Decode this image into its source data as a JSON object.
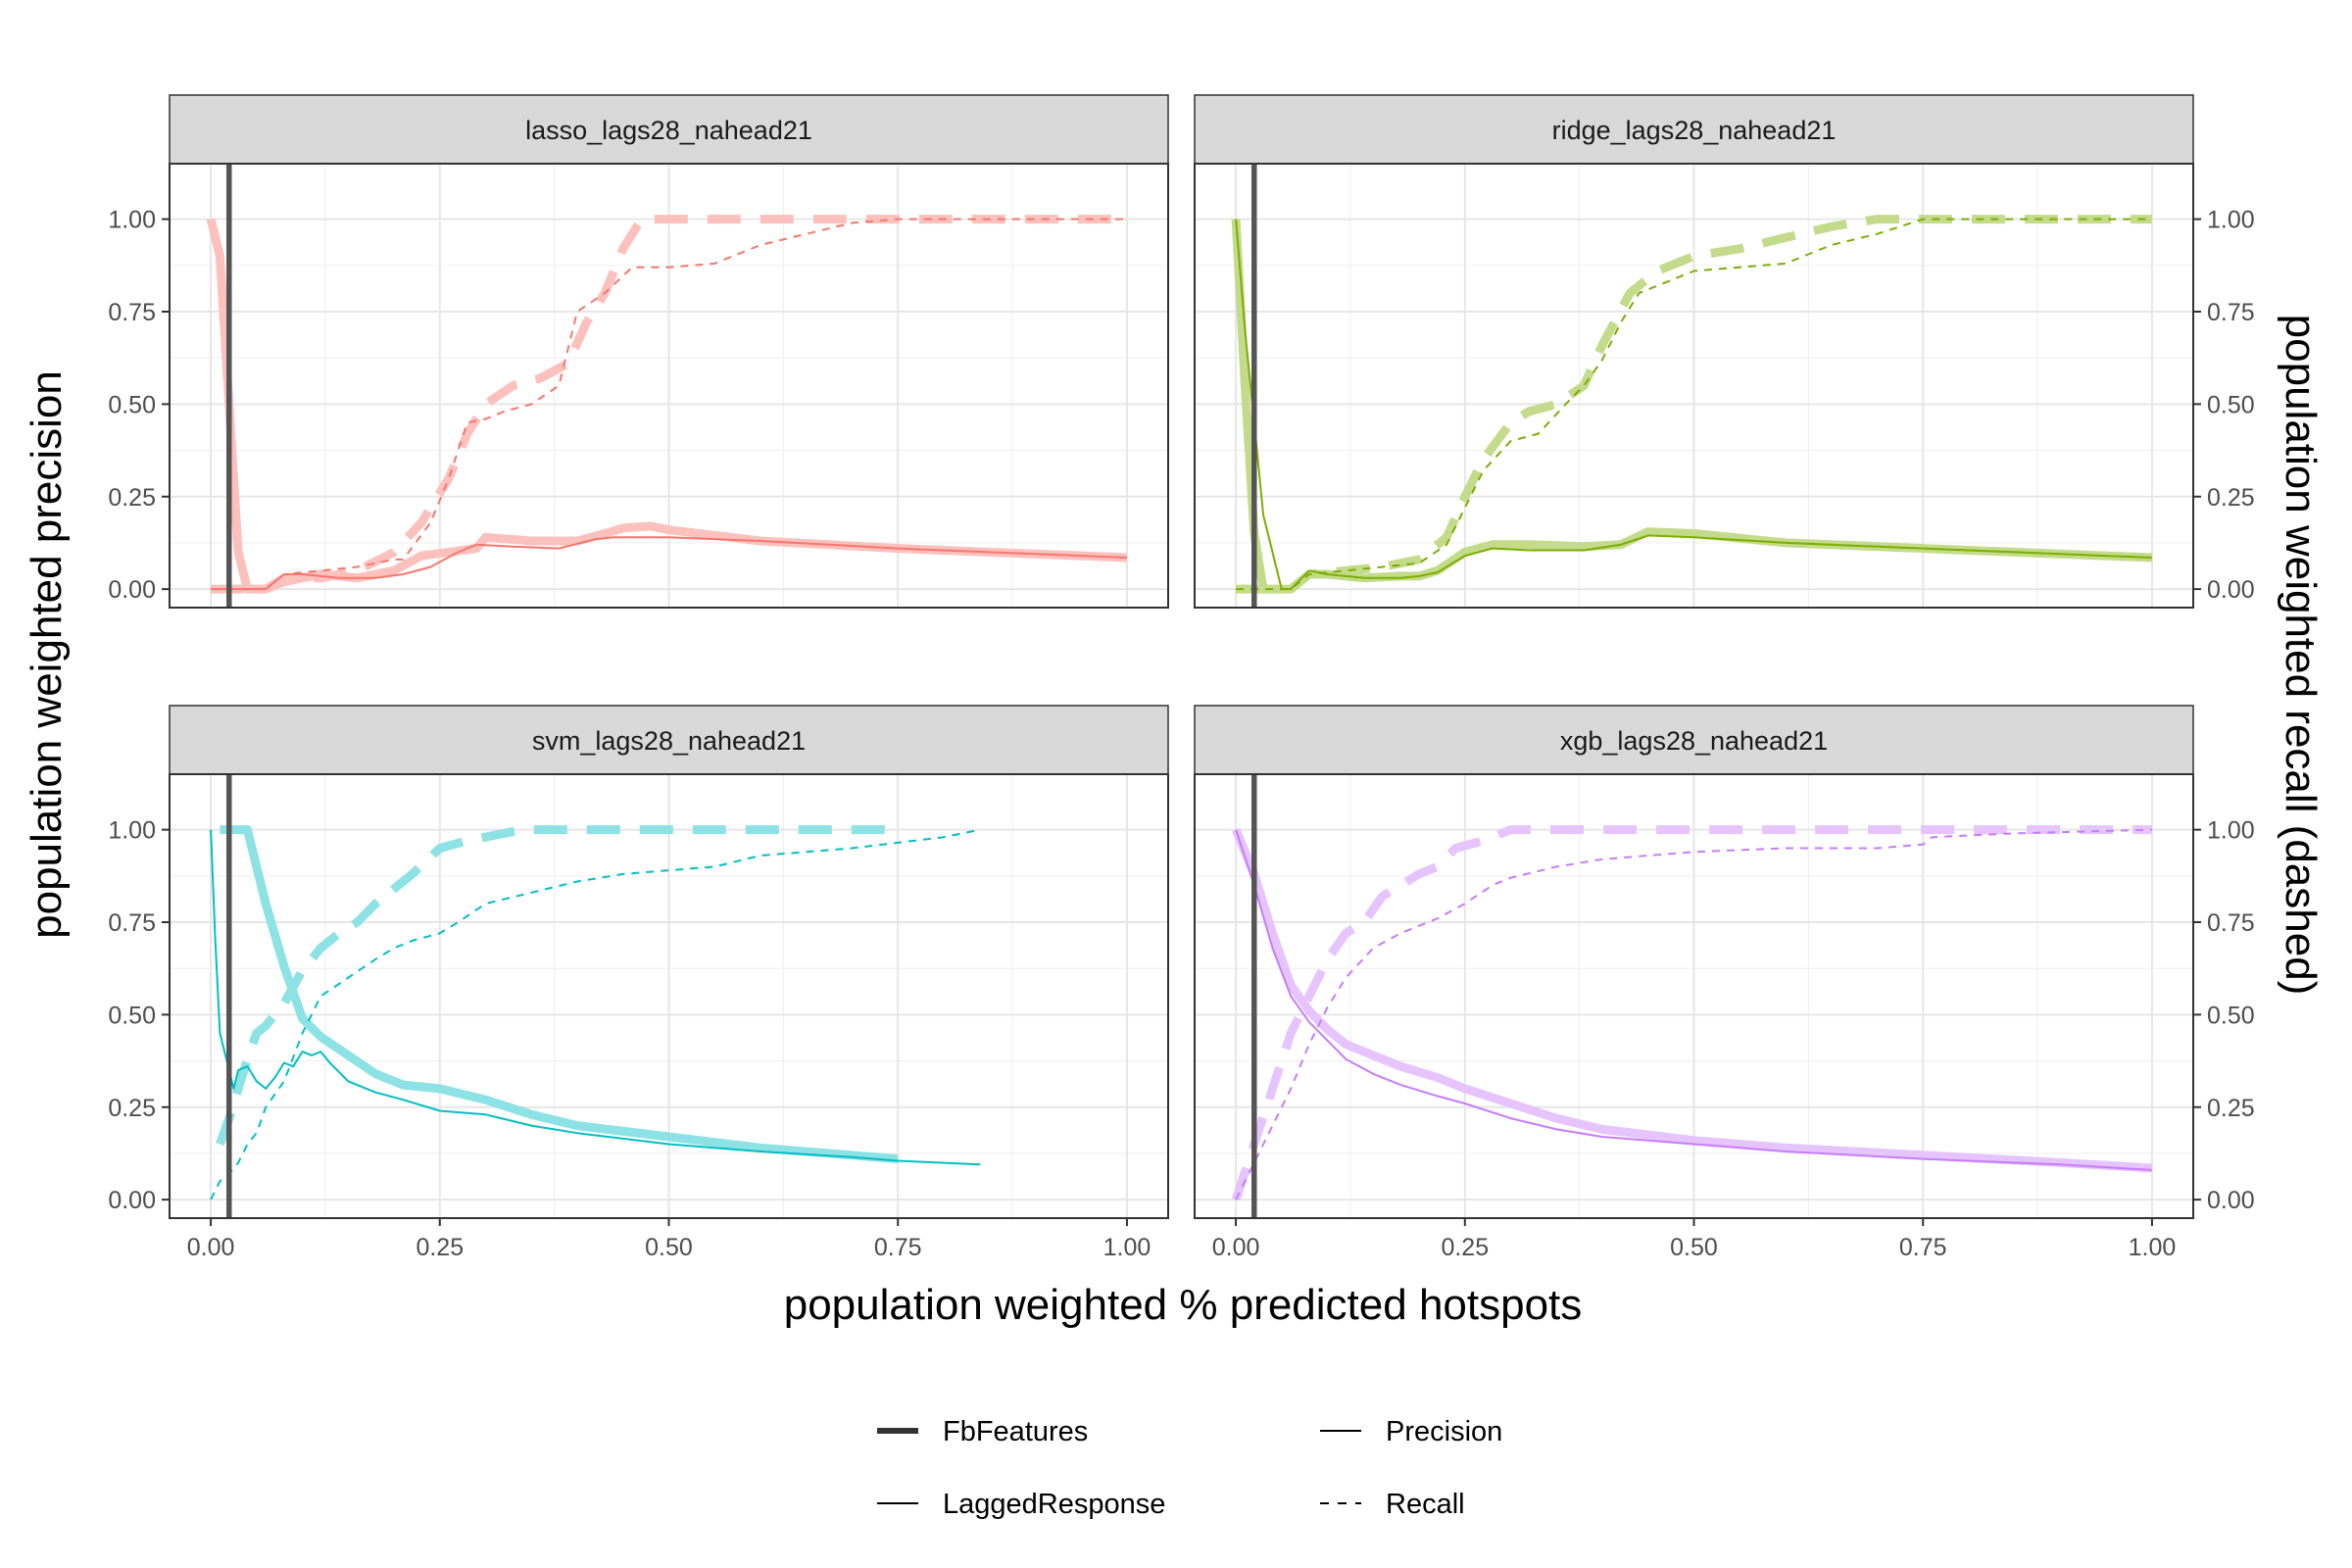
{
  "axes": {
    "x_title": "population weighted % predicted hotspots",
    "y_title": "population weighted precision",
    "y2_title": "population weighted recall (dashed)",
    "x_ticks": [
      0,
      0.25,
      0.5,
      0.75,
      1
    ],
    "x_tick_labels": [
      "0.00",
      "0.25",
      "0.50",
      "0.75",
      "1.00"
    ],
    "y_ticks": [
      0,
      0.25,
      0.5,
      0.75,
      1
    ],
    "y_tick_labels": [
      "0.00",
      "0.25",
      "0.50",
      "0.75",
      "1.00"
    ]
  },
  "legend": {
    "features": [
      {
        "label": "FbFeatures",
        "linewidth": "thick"
      },
      {
        "label": "LaggedResponse",
        "linewidth": "thin"
      }
    ],
    "metrics": [
      {
        "label": "Precision",
        "linetype": "solid"
      },
      {
        "label": "Recall",
        "linetype": "dashed"
      }
    ]
  },
  "chart_data": {
    "type": "line",
    "facet_layout": "2x2",
    "xlim": [
      0,
      1
    ],
    "ylim": [
      0,
      1
    ],
    "vline_x": 0.02,
    "legend_position": "bottom",
    "grid": true,
    "panels": [
      {
        "title": "lasso_lags28_nahead21",
        "color": "#F8766D",
        "series": [
          {
            "feature": "FbFeatures",
            "metric": "Precision",
            "x": [
              0.0,
              0.01,
              0.03,
              0.04,
              0.06,
              0.08,
              0.12,
              0.16,
              0.2,
              0.23,
              0.26,
              0.29,
              0.3,
              0.35,
              0.4,
              0.43,
              0.45,
              0.48,
              0.5,
              0.6,
              0.75,
              0.9,
              1.0
            ],
            "y": [
              1.0,
              0.9,
              0.1,
              0.0,
              0.0,
              0.02,
              0.04,
              0.03,
              0.05,
              0.09,
              0.1,
              0.11,
              0.14,
              0.13,
              0.13,
              0.15,
              0.165,
              0.17,
              0.16,
              0.13,
              0.11,
              0.095,
              0.085
            ]
          },
          {
            "feature": "LaggedResponse",
            "metric": "Precision",
            "x": [
              0.0,
              0.005,
              0.01,
              0.015,
              0.02,
              0.04,
              0.06,
              0.08,
              0.1,
              0.14,
              0.18,
              0.21,
              0.24,
              0.27,
              0.29,
              0.33,
              0.38,
              0.42,
              0.44,
              0.5,
              0.6,
              0.75,
              0.9,
              1.0
            ],
            "y": [
              0.0,
              0.0,
              0.0,
              0.0,
              0.0,
              0.0,
              0.0,
              0.04,
              0.04,
              0.03,
              0.03,
              0.04,
              0.06,
              0.1,
              0.12,
              0.115,
              0.11,
              0.135,
              0.14,
              0.14,
              0.13,
              0.11,
              0.095,
              0.085
            ]
          },
          {
            "feature": "FbFeatures",
            "metric": "Recall",
            "x": [
              0.0,
              0.03,
              0.04,
              0.06,
              0.08,
              0.12,
              0.16,
              0.2,
              0.23,
              0.26,
              0.28,
              0.3,
              0.33,
              0.36,
              0.39,
              0.41,
              0.43,
              0.45,
              0.47,
              0.5,
              0.6,
              0.75,
              0.9,
              1.0
            ],
            "y": [
              0.0,
              0.0,
              0.0,
              0.0,
              0.03,
              0.03,
              0.05,
              0.1,
              0.18,
              0.3,
              0.42,
              0.5,
              0.55,
              0.57,
              0.61,
              0.72,
              0.8,
              0.92,
              1.0,
              1.0,
              1.0,
              1.0,
              1.0,
              1.0
            ]
          },
          {
            "feature": "LaggedResponse",
            "metric": "Recall",
            "x": [
              0.0,
              0.02,
              0.04,
              0.06,
              0.08,
              0.12,
              0.16,
              0.2,
              0.21,
              0.24,
              0.26,
              0.28,
              0.3,
              0.32,
              0.35,
              0.38,
              0.4,
              0.43,
              0.46,
              0.5,
              0.55,
              0.6,
              0.65,
              0.7,
              0.75,
              0.85,
              1.0
            ],
            "y": [
              0.0,
              0.0,
              0.0,
              0.0,
              0.04,
              0.05,
              0.06,
              0.08,
              0.08,
              0.18,
              0.3,
              0.45,
              0.46,
              0.48,
              0.5,
              0.55,
              0.75,
              0.8,
              0.87,
              0.87,
              0.88,
              0.93,
              0.96,
              0.99,
              1.0,
              1.0,
              1.0
            ]
          }
        ]
      },
      {
        "title": "ridge_lags28_nahead21",
        "color": "#7CAE00",
        "series": [
          {
            "feature": "FbFeatures",
            "metric": "Precision",
            "x": [
              0.0,
              0.01,
              0.02,
              0.03,
              0.04,
              0.06,
              0.08,
              0.1,
              0.14,
              0.18,
              0.2,
              0.22,
              0.25,
              0.28,
              0.32,
              0.38,
              0.42,
              0.45,
              0.5,
              0.6,
              0.75,
              0.9,
              1.0
            ],
            "y": [
              1.0,
              0.55,
              0.15,
              0.0,
              0.0,
              0.0,
              0.04,
              0.04,
              0.03,
              0.035,
              0.035,
              0.05,
              0.1,
              0.12,
              0.12,
              0.115,
              0.12,
              0.155,
              0.15,
              0.125,
              0.11,
              0.095,
              0.085
            ]
          },
          {
            "feature": "LaggedResponse",
            "metric": "Precision",
            "x": [
              0.0,
              0.01,
              0.02,
              0.03,
              0.05,
              0.06,
              0.08,
              0.1,
              0.14,
              0.18,
              0.2,
              0.22,
              0.25,
              0.28,
              0.32,
              0.38,
              0.42,
              0.45,
              0.5,
              0.6,
              0.75,
              0.9,
              1.0
            ],
            "y": [
              1.0,
              0.7,
              0.45,
              0.2,
              0.0,
              0.0,
              0.05,
              0.04,
              0.03,
              0.03,
              0.035,
              0.045,
              0.09,
              0.11,
              0.105,
              0.105,
              0.12,
              0.145,
              0.14,
              0.125,
              0.11,
              0.095,
              0.085
            ]
          },
          {
            "feature": "FbFeatures",
            "metric": "Recall",
            "x": [
              0.0,
              0.03,
              0.06,
              0.08,
              0.12,
              0.16,
              0.2,
              0.23,
              0.25,
              0.27,
              0.3,
              0.32,
              0.35,
              0.38,
              0.4,
              0.43,
              0.46,
              0.48,
              0.5,
              0.55,
              0.6,
              0.65,
              0.7,
              1.0
            ],
            "y": [
              0.0,
              0.0,
              0.0,
              0.04,
              0.05,
              0.06,
              0.08,
              0.14,
              0.25,
              0.35,
              0.45,
              0.48,
              0.5,
              0.55,
              0.66,
              0.8,
              0.86,
              0.88,
              0.9,
              0.92,
              0.95,
              0.98,
              1.0,
              1.0
            ]
          },
          {
            "feature": "LaggedResponse",
            "metric": "Recall",
            "x": [
              0.0,
              0.03,
              0.06,
              0.08,
              0.12,
              0.16,
              0.2,
              0.23,
              0.25,
              0.27,
              0.3,
              0.33,
              0.36,
              0.38,
              0.4,
              0.42,
              0.44,
              0.47,
              0.5,
              0.55,
              0.6,
              0.65,
              0.7,
              0.75,
              1.0
            ],
            "y": [
              0.0,
              0.0,
              0.0,
              0.04,
              0.05,
              0.06,
              0.07,
              0.12,
              0.22,
              0.32,
              0.4,
              0.42,
              0.5,
              0.55,
              0.62,
              0.72,
              0.8,
              0.83,
              0.86,
              0.87,
              0.88,
              0.93,
              0.96,
              1.0,
              1.0
            ]
          }
        ]
      },
      {
        "title": "svm_lags28_nahead21",
        "color": "#00BFC4",
        "series": [
          {
            "feature": "FbFeatures",
            "metric": "Precision",
            "x": [
              0.01,
              0.02,
              0.03,
              0.04,
              0.05,
              0.06,
              0.08,
              0.1,
              0.12,
              0.15,
              0.18,
              0.21,
              0.25,
              0.3,
              0.35,
              0.4,
              0.5,
              0.6,
              0.7,
              0.75
            ],
            "y": [
              1.0,
              1.0,
              1.0,
              1.0,
              0.9,
              0.8,
              0.63,
              0.49,
              0.44,
              0.39,
              0.34,
              0.31,
              0.3,
              0.27,
              0.23,
              0.2,
              0.17,
              0.14,
              0.12,
              0.11
            ]
          },
          {
            "feature": "LaggedResponse",
            "metric": "Precision",
            "x": [
              0.0,
              0.005,
              0.01,
              0.015,
              0.02,
              0.025,
              0.03,
              0.04,
              0.05,
              0.06,
              0.07,
              0.08,
              0.09,
              0.1,
              0.11,
              0.12,
              0.13,
              0.15,
              0.18,
              0.21,
              0.25,
              0.3,
              0.35,
              0.4,
              0.5,
              0.6,
              0.7,
              0.75,
              0.84
            ],
            "y": [
              1.0,
              0.7,
              0.45,
              0.4,
              0.35,
              0.3,
              0.35,
              0.36,
              0.32,
              0.3,
              0.33,
              0.37,
              0.36,
              0.4,
              0.39,
              0.4,
              0.37,
              0.32,
              0.29,
              0.27,
              0.24,
              0.23,
              0.2,
              0.18,
              0.15,
              0.13,
              0.115,
              0.105,
              0.095
            ]
          },
          {
            "feature": "FbFeatures",
            "metric": "Recall",
            "x": [
              0.01,
              0.02,
              0.03,
              0.04,
              0.05,
              0.06,
              0.08,
              0.1,
              0.12,
              0.14,
              0.16,
              0.18,
              0.2,
              0.22,
              0.25,
              0.28,
              0.3,
              0.34,
              0.4,
              0.5,
              0.6,
              0.75
            ],
            "y": [
              0.15,
              0.22,
              0.3,
              0.38,
              0.45,
              0.47,
              0.53,
              0.62,
              0.68,
              0.72,
              0.75,
              0.8,
              0.84,
              0.88,
              0.95,
              0.97,
              0.98,
              1.0,
              1.0,
              1.0,
              1.0,
              1.0
            ]
          },
          {
            "feature": "LaggedResponse",
            "metric": "Recall",
            "x": [
              0.0,
              0.01,
              0.02,
              0.03,
              0.04,
              0.05,
              0.06,
              0.08,
              0.1,
              0.12,
              0.15,
              0.18,
              0.2,
              0.22,
              0.25,
              0.27,
              0.3,
              0.35,
              0.4,
              0.45,
              0.5,
              0.55,
              0.6,
              0.7,
              0.8,
              0.84
            ],
            "y": [
              0.0,
              0.05,
              0.07,
              0.1,
              0.15,
              0.18,
              0.25,
              0.32,
              0.45,
              0.55,
              0.6,
              0.65,
              0.68,
              0.7,
              0.72,
              0.75,
              0.8,
              0.83,
              0.86,
              0.88,
              0.89,
              0.9,
              0.93,
              0.95,
              0.98,
              1.0
            ]
          }
        ]
      },
      {
        "title": "xgb_lags28_nahead21",
        "color": "#C77CFF",
        "series": [
          {
            "feature": "FbFeatures",
            "metric": "Precision",
            "x": [
              0.0,
              0.02,
              0.04,
              0.06,
              0.08,
              0.1,
              0.12,
              0.15,
              0.18,
              0.22,
              0.25,
              0.3,
              0.35,
              0.4,
              0.5,
              0.6,
              0.75,
              0.9,
              1.0
            ],
            "y": [
              1.0,
              0.88,
              0.72,
              0.58,
              0.51,
              0.46,
              0.42,
              0.39,
              0.36,
              0.33,
              0.3,
              0.26,
              0.22,
              0.19,
              0.16,
              0.14,
              0.12,
              0.1,
              0.085
            ]
          },
          {
            "feature": "LaggedResponse",
            "metric": "Precision",
            "x": [
              0.0,
              0.02,
              0.04,
              0.06,
              0.08,
              0.1,
              0.12,
              0.15,
              0.18,
              0.22,
              0.25,
              0.3,
              0.35,
              0.4,
              0.5,
              0.6,
              0.75,
              0.9,
              1.0
            ],
            "y": [
              1.0,
              0.85,
              0.68,
              0.55,
              0.48,
              0.43,
              0.38,
              0.34,
              0.31,
              0.28,
              0.26,
              0.22,
              0.19,
              0.17,
              0.15,
              0.13,
              0.11,
              0.095,
              0.08
            ]
          },
          {
            "feature": "FbFeatures",
            "metric": "Recall",
            "x": [
              0.0,
              0.02,
              0.04,
              0.06,
              0.08,
              0.1,
              0.12,
              0.14,
              0.16,
              0.18,
              0.2,
              0.22,
              0.24,
              0.27,
              0.3,
              0.35,
              0.5,
              0.75,
              1.0
            ],
            "y": [
              0.0,
              0.15,
              0.3,
              0.45,
              0.55,
              0.65,
              0.72,
              0.75,
              0.82,
              0.85,
              0.88,
              0.9,
              0.95,
              0.97,
              1.0,
              1.0,
              1.0,
              1.0,
              1.0
            ]
          },
          {
            "feature": "LaggedResponse",
            "metric": "Recall",
            "x": [
              0.0,
              0.02,
              0.04,
              0.06,
              0.08,
              0.1,
              0.12,
              0.15,
              0.18,
              0.22,
              0.25,
              0.28,
              0.3,
              0.35,
              0.4,
              0.5,
              0.6,
              0.7,
              0.75,
              0.76,
              0.85,
              1.0
            ],
            "y": [
              0.0,
              0.1,
              0.2,
              0.3,
              0.42,
              0.52,
              0.6,
              0.68,
              0.72,
              0.76,
              0.8,
              0.85,
              0.87,
              0.9,
              0.92,
              0.94,
              0.95,
              0.95,
              0.96,
              0.98,
              0.99,
              1.0
            ]
          }
        ]
      }
    ]
  }
}
